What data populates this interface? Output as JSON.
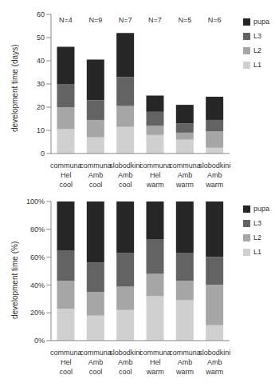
{
  "chart_data": [
    {
      "type": "bar",
      "stacked": true,
      "grid": false,
      "legend": "right",
      "y_label": "development time (days)",
      "categories": [
        "communa\nHel\ncool",
        "communa\nAmb\ncool",
        "slobodkini\nAmb\ncool",
        "communa\nHel\nwarm",
        "communa\nAmb\nwarm",
        "slobodkini\nAmb\nwarm"
      ],
      "annotations": [
        "N=4",
        "N=9",
        "N=7",
        "N=7",
        "N=5",
        "N=6"
      ],
      "ylim": [
        0,
        60
      ],
      "yticks": [
        0,
        10,
        20,
        30,
        40,
        50,
        60
      ],
      "series": [
        {
          "name": "L1",
          "color": "#d0d0d0",
          "values": [
            10.5,
            7,
            11.5,
            8,
            6,
            2.5
          ]
        },
        {
          "name": "L2",
          "color": "#a6a6a6",
          "values": [
            9.5,
            7.5,
            9,
            4,
            3,
            7
          ]
        },
        {
          "name": "L3",
          "color": "#636363",
          "values": [
            10,
            8.5,
            12.5,
            6,
            4,
            5
          ]
        },
        {
          "name": "pupa",
          "color": "#262626",
          "values": [
            16,
            17.5,
            19,
            7,
            8,
            10
          ]
        }
      ]
    },
    {
      "type": "bar",
      "stacked": true,
      "grid": false,
      "legend": "right",
      "y_label": "development time (%)",
      "categories": [
        "communa\nHel\ncool",
        "communa\nAmb\ncool",
        "slobodkini\nAmb\ncool",
        "communa\nHel\nwarm",
        "communa\nAmb\nwarm",
        "slobodkini\nAmb\nwarm"
      ],
      "ylim": [
        0,
        100
      ],
      "yticks": [
        {
          "value": 0,
          "label": "0%"
        },
        {
          "value": 20,
          "label": "20%"
        },
        {
          "value": 40,
          "label": "40%"
        },
        {
          "value": 60,
          "label": "60%"
        },
        {
          "value": 80,
          "label": "80%"
        },
        {
          "value": 100,
          "label": "100%"
        }
      ],
      "series": [
        {
          "name": "L1",
          "color": "#d0d0d0",
          "values": [
            23,
            18,
            22,
            32,
            29,
            11
          ]
        },
        {
          "name": "L2",
          "color": "#a6a6a6",
          "values": [
            20,
            17,
            17,
            16,
            14,
            29
          ]
        },
        {
          "name": "L3",
          "color": "#636363",
          "values": [
            22,
            21,
            24,
            25,
            20,
            20
          ]
        },
        {
          "name": "pupa",
          "color": "#262626",
          "values": [
            35,
            44,
            37,
            27,
            37,
            40
          ]
        }
      ]
    }
  ]
}
